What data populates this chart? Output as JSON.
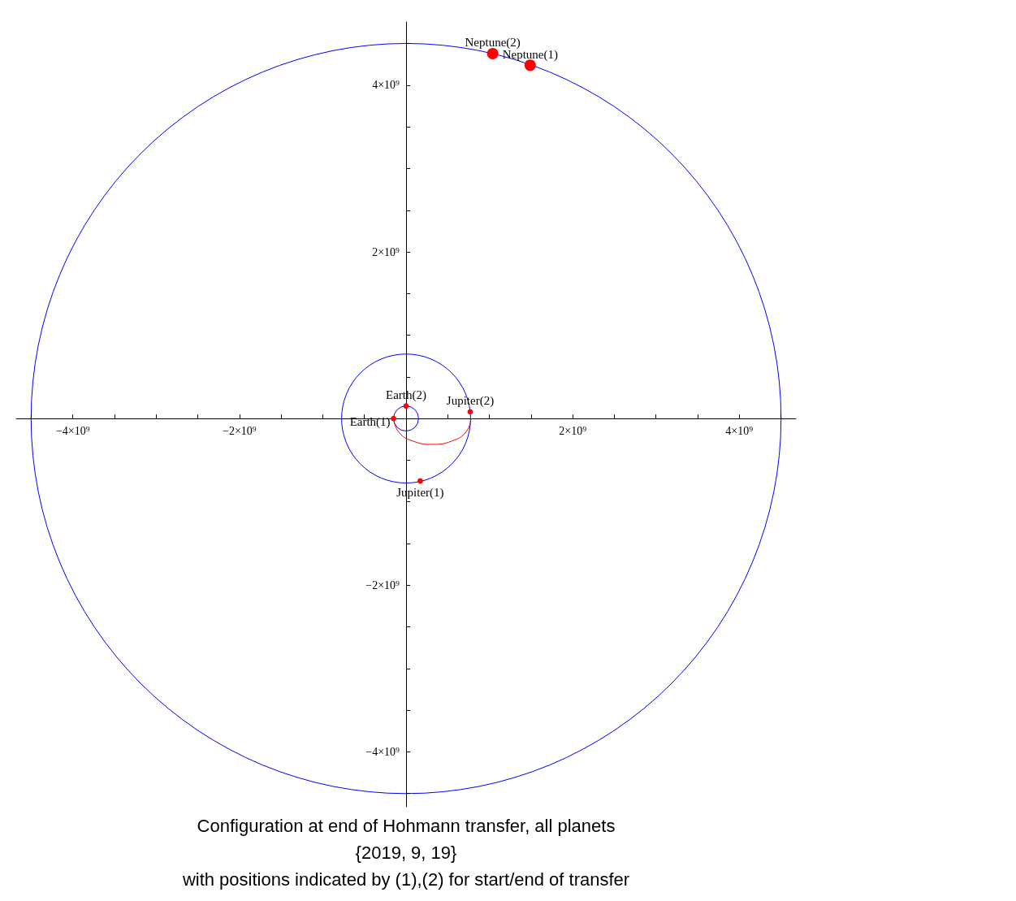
{
  "chart_data": {
    "type": "line",
    "title": "Configuration at end of Hohmann transfer, all planets",
    "subtitle": "{2019, 9, 19}",
    "annotations": [
      "with positions indicated by (1),(2) for start/end of transfer",
      {
        "text": "Neptune(2)",
        "x": 1040000000.0,
        "y": 4380000000.0
      },
      {
        "text": "Neptune(1)",
        "x": 1490000000.0,
        "y": 4240000000.0
      },
      {
        "text": "Earth(2)",
        "x": 0,
        "y": 150000000.0
      },
      {
        "text": "Earth(1)",
        "x": -150000000.0,
        "y": 0
      },
      {
        "text": "Jupiter(2)",
        "x": 770000000.0,
        "y": 80000000.0
      },
      {
        "text": "Jupiter(1)",
        "x": 170000000.0,
        "y": -750000000.0
      }
    ],
    "xlim": [
      -4680000000.0,
      4680000000.0
    ],
    "ylim": [
      -4660000000.0,
      4760000000.0
    ],
    "xticks": [
      {
        "value": -4500000000.0,
        "label": null
      },
      {
        "value": -4000000000.0,
        "label": "−4×10⁹"
      },
      {
        "value": -3500000000.0,
        "label": null
      },
      {
        "value": -3000000000.0,
        "label": null
      },
      {
        "value": -2500000000.0,
        "label": null
      },
      {
        "value": -2000000000.0,
        "label": "−2×10⁹"
      },
      {
        "value": -1500000000.0,
        "label": null
      },
      {
        "value": -1000000000.0,
        "label": null
      },
      {
        "value": -500000000.0,
        "label": null
      },
      {
        "value": 500000000.0,
        "label": null
      },
      {
        "value": 1000000000.0,
        "label": null
      },
      {
        "value": 1500000000.0,
        "label": null
      },
      {
        "value": 2000000000.0,
        "label": "2×10⁹"
      },
      {
        "value": 2500000000.0,
        "label": null
      },
      {
        "value": 3000000000.0,
        "label": null
      },
      {
        "value": 3500000000.0,
        "label": null
      },
      {
        "value": 4000000000.0,
        "label": "4×10⁹"
      },
      {
        "value": 4500000000.0,
        "label": null
      }
    ],
    "yticks": [
      {
        "value": -4500000000.0,
        "label": null
      },
      {
        "value": -4000000000.0,
        "label": "−4×10⁹"
      },
      {
        "value": -3500000000.0,
        "label": null
      },
      {
        "value": -3000000000.0,
        "label": null
      },
      {
        "value": -2500000000.0,
        "label": null
      },
      {
        "value": -2000000000.0,
        "label": "−2×10⁹"
      },
      {
        "value": -1500000000.0,
        "label": null
      },
      {
        "value": -1000000000.0,
        "label": null
      },
      {
        "value": -500000000.0,
        "label": null
      },
      {
        "value": 500000000.0,
        "label": null
      },
      {
        "value": 1000000000.0,
        "label": null
      },
      {
        "value": 1500000000.0,
        "label": null
      },
      {
        "value": 2000000000.0,
        "label": "2×10⁹"
      },
      {
        "value": 2500000000.0,
        "label": null
      },
      {
        "value": 3000000000.0,
        "label": null
      },
      {
        "value": 3500000000.0,
        "label": null
      },
      {
        "value": 4000000000.0,
        "label": "4×10⁹"
      },
      {
        "value": 4500000000.0,
        "label": null
      }
    ],
    "series": [
      {
        "color": "#ff0000",
        "x": [
          -150000000.0,
          -90000000.0,
          80000000.0,
          320000000.0,
          550000000.0,
          720000000.0,
          780000000.0
        ],
        "values": [
          0,
          -160000000.0,
          -270000000.0,
          -310000000.0,
          -270000000.0,
          -160000000.0,
          0
        ]
      },
      {
        "type": "bubble",
        "color": "#ff0000",
        "x": [
          1040000000.0,
          1490000000.0,
          0,
          -150000000.0,
          770000000.0,
          170000000.0
        ],
        "values": [
          4380000000.0,
          4240000000.0,
          150000000.0,
          0,
          80000000.0,
          -750000000.0
        ],
        "sizes": [
          1,
          1,
          0.2,
          0.2,
          0.2,
          0.2
        ]
      }
    ]
  }
}
